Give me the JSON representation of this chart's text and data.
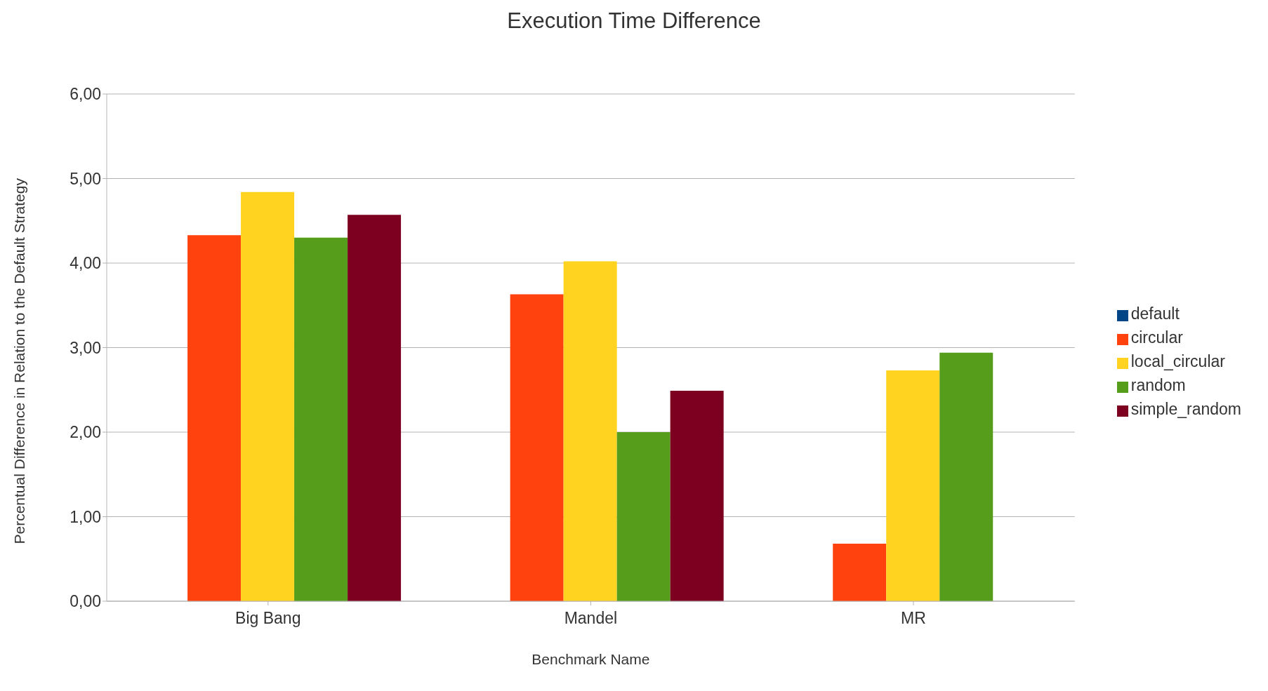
{
  "chart_data": {
    "type": "bar",
    "title": "Execution Time Difference",
    "xlabel": "Benchmark Name",
    "ylabel": "Percentual Difference in Relation to the Default Strategy",
    "categories": [
      "Big Bang",
      "Mandel",
      "MR"
    ],
    "series": [
      {
        "name": "default",
        "color": "#004586",
        "values": [
          0,
          0,
          0
        ]
      },
      {
        "name": "circular",
        "color": "#ff420e",
        "values": [
          4.33,
          3.63,
          0.68
        ]
      },
      {
        "name": "local_circular",
        "color": "#ffd320",
        "values": [
          4.84,
          4.02,
          2.73
        ]
      },
      {
        "name": "random",
        "color": "#579d1c",
        "values": [
          4.3,
          2.0,
          2.94
        ]
      },
      {
        "name": "simple_random",
        "color": "#7e0021",
        "values": [
          4.57,
          2.49,
          0
        ]
      }
    ],
    "ylim": [
      0,
      6
    ],
    "yticks": [
      {
        "value": 0,
        "label": "0,00"
      },
      {
        "value": 1,
        "label": "1,00"
      },
      {
        "value": 2,
        "label": "2,00"
      },
      {
        "value": 3,
        "label": "3,00"
      },
      {
        "value": 4,
        "label": "4,00"
      },
      {
        "value": 5,
        "label": "5,00"
      },
      {
        "value": 6,
        "label": "6,00"
      }
    ],
    "grid": "y",
    "legend": "right"
  }
}
